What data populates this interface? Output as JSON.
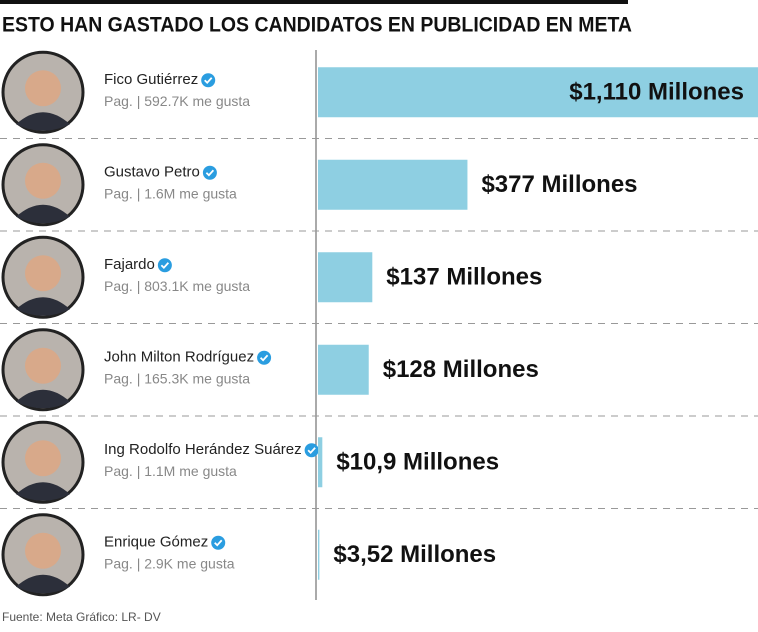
{
  "chart_data": {
    "type": "bar",
    "orientation": "horizontal",
    "title": "ESTO HAN GASTADO LOS CANDIDATOS EN PUBLICIDAD EN META",
    "categories": [
      "Fico Gutiérrez",
      "Gustavo Petro",
      "Fajardo",
      "John Milton Rodríguez",
      "Ing Rodolfo Herández Suárez",
      "Enrique Gómez"
    ],
    "page_info": [
      "Pag. | 592.7K me gusta",
      "Pag. | 1.6M me gusta",
      "Pag. | 803.1K me gusta",
      "Pag. | 165.3K me gusta",
      "Pag. | 1.1M me gusta",
      "Pag. | 2.9K me gusta"
    ],
    "values": [
      1110,
      377,
      137,
      128,
      10.9,
      3.52
    ],
    "value_labels": [
      "$1,110 Millones",
      "$377 Millones",
      "$137 Millones",
      "$128 Millones",
      "$10,9 Millones",
      "$3,52 Millones"
    ],
    "color": "#8ecfe2",
    "source": "Fuente: Meta Gráfico: LR- DV"
  }
}
